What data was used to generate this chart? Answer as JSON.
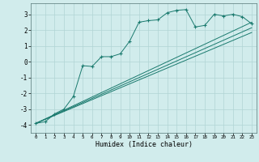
{
  "xlabel": "Humidex (Indice chaleur)",
  "ylabel": "",
  "xlim": [
    -0.5,
    23.5
  ],
  "ylim": [
    -4.5,
    3.7
  ],
  "xticks": [
    0,
    1,
    2,
    3,
    4,
    5,
    6,
    7,
    8,
    9,
    10,
    11,
    12,
    13,
    14,
    15,
    16,
    17,
    18,
    19,
    20,
    21,
    22,
    23
  ],
  "yticks": [
    -4,
    -3,
    -2,
    -1,
    0,
    1,
    2,
    3
  ],
  "bg_color": "#d1ecec",
  "line_color": "#1a7a6e",
  "line1_x": [
    0,
    1,
    2,
    3,
    4,
    5,
    6,
    7,
    8,
    9,
    10,
    11,
    12,
    13,
    14,
    15,
    16,
    17,
    18,
    19,
    20,
    21,
    22,
    23
  ],
  "line1_y": [
    -3.9,
    -3.8,
    -3.3,
    -3.0,
    -2.2,
    -0.25,
    -0.3,
    0.32,
    0.32,
    0.5,
    1.3,
    2.5,
    2.6,
    2.65,
    3.1,
    3.25,
    3.3,
    2.2,
    2.3,
    3.0,
    2.9,
    3.0,
    2.85,
    2.4
  ],
  "line2_x": [
    0,
    23
  ],
  "line2_y": [
    -3.9,
    2.5
  ],
  "line3_x": [
    0,
    23
  ],
  "line3_y": [
    -3.9,
    2.15
  ],
  "line4_x": [
    0,
    23
  ],
  "line4_y": [
    -3.9,
    1.85
  ],
  "grid_color": "#b0d4d4",
  "marker": "+"
}
